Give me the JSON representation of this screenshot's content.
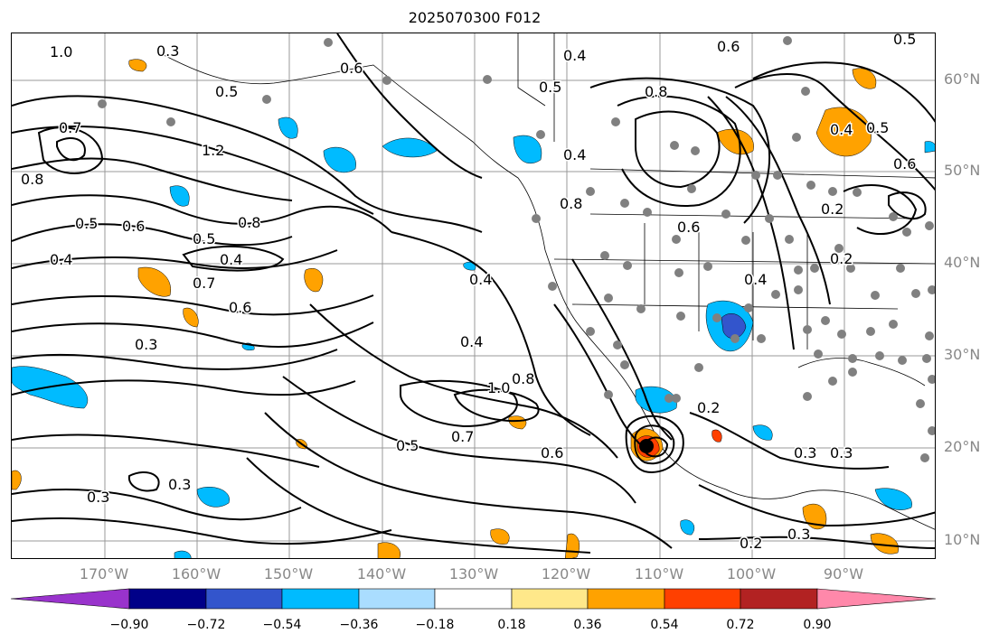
{
  "title": "2025070300 F012",
  "lat_labels": [
    "60°N",
    "50°N",
    "40°N",
    "30°N",
    "20°N",
    "10°N"
  ],
  "lon_labels": [
    "170°W",
    "160°W",
    "150°W",
    "140°W",
    "130°W",
    "120°W",
    "110°W",
    "100°W",
    "90°W"
  ],
  "colorbar": {
    "ticks": [
      "−0.90",
      "−0.72",
      "−0.54",
      "−0.36",
      "−0.18",
      "0.18",
      "0.36",
      "0.54",
      "0.72",
      "0.90"
    ],
    "colors": [
      "#9933cc",
      "#000088",
      "#3355cc",
      "#00bbff",
      "#aaddff",
      "#ffffff",
      "#ffe88a",
      "#ffa200",
      "#ff4000",
      "#b22222",
      "#ff88aa"
    ]
  },
  "contour_labels": [
    "1.0",
    "0.3",
    "0.6",
    "0.5",
    "0.7",
    "0.8",
    "1.2",
    "0.5",
    "0.6",
    "0.8",
    "0.4",
    "0.5",
    "0.4",
    "0.7",
    "0.6",
    "0.3",
    "0.3",
    "0.3",
    "0.4",
    "0.4",
    "0.5",
    "1.0",
    "0.8",
    "0.7",
    "0.6",
    "0.5",
    "0.8",
    "0.4",
    "0.8",
    "0.6",
    "0.4",
    "0.2",
    "0.4",
    "0.5",
    "0.6",
    "0.2",
    "0.2",
    "0.3",
    "0.3",
    "0.2",
    "0.3",
    "0.6",
    "0.4",
    "0.5"
  ],
  "colors": {
    "contour": "#000000",
    "grid": "#999999",
    "positive_fill": "#ffa200",
    "negative_fill": "#00bbff",
    "station_dot": "#808080"
  }
}
